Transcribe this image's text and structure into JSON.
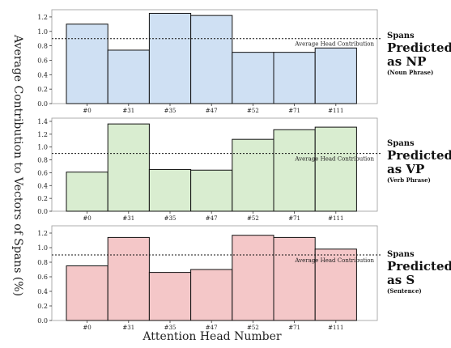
{
  "figure": {
    "ylabel": "Average Contribution to Vectors of Spans (%)",
    "xlabel": "Attention Head Number"
  },
  "chart_data": [
    {
      "type": "bar",
      "categories": [
        "#0",
        "#31",
        "#35",
        "#47",
        "#52",
        "#71",
        "#111"
      ],
      "values": [
        1.1,
        0.74,
        1.25,
        1.22,
        0.71,
        0.71,
        0.77
      ],
      "ylim": [
        0,
        1.3
      ],
      "yticks": [
        "0.0",
        "0.2",
        "0.4",
        "0.6",
        "0.8",
        "1.0",
        "1.2"
      ],
      "reference_line": {
        "value": 0.9,
        "label": "Average Head Contribution"
      },
      "bar_color": "#cfe0f3",
      "side_label": {
        "line1": "Spans",
        "line2": "Predicted",
        "line3": "as NP",
        "note": "(Noun Phrase)"
      }
    },
    {
      "type": "bar",
      "categories": [
        "#0",
        "#31",
        "#35",
        "#47",
        "#52",
        "#71",
        "#111"
      ],
      "values": [
        0.61,
        1.36,
        0.65,
        0.64,
        1.12,
        1.27,
        1.31
      ],
      "ylim": [
        0,
        1.45
      ],
      "yticks": [
        "0.0",
        "0.2",
        "0.4",
        "0.6",
        "0.8",
        "1.0",
        "1.2",
        "1.4"
      ],
      "reference_line": {
        "value": 0.9,
        "label": "Average Head Contribution"
      },
      "bar_color": "#d9edd0",
      "side_label": {
        "line1": "Spans",
        "line2": "Predicted",
        "line3": "as VP",
        "note": "(Verb Phrase)"
      }
    },
    {
      "type": "bar",
      "categories": [
        "#0",
        "#31",
        "#35",
        "#47",
        "#52",
        "#71",
        "#111"
      ],
      "values": [
        0.75,
        1.14,
        0.66,
        0.7,
        1.17,
        1.14,
        0.98
      ],
      "ylim": [
        0,
        1.3
      ],
      "yticks": [
        "0.0",
        "0.2",
        "0.4",
        "0.6",
        "0.8",
        "1.0",
        "1.2"
      ],
      "reference_line": {
        "value": 0.9,
        "label": "Average Head Contribution"
      },
      "bar_color": "#f4c7c8",
      "side_label": {
        "line1": "Spans",
        "line2": "Predicted",
        "line3": "as S",
        "note": "(Sentence)"
      }
    }
  ]
}
